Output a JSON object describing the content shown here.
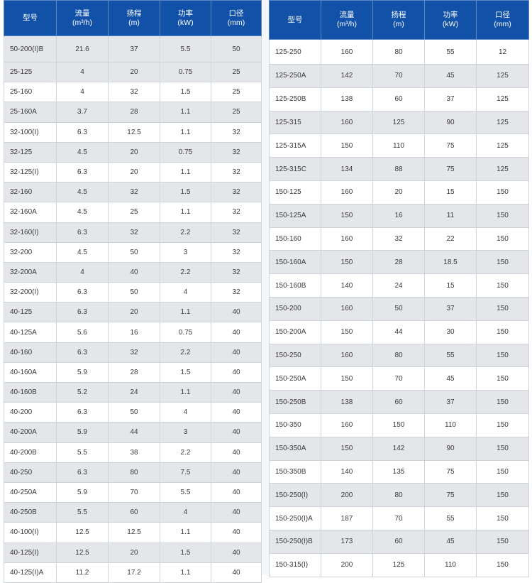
{
  "headers": {
    "model": "型号",
    "flow": "流量",
    "flow_unit": "(m³/h)",
    "head": "扬程",
    "head_unit": "(m)",
    "power": "功率",
    "power_unit": "(kW)",
    "diameter": "口径",
    "diameter_unit": "(mm)"
  },
  "left_top_row": [
    "50-200(I)B",
    "21.6",
    "37",
    "5.5",
    "50"
  ],
  "left_rows": [
    [
      "25-125",
      "4",
      "20",
      "0.75",
      "25"
    ],
    [
      "25-160",
      "4",
      "32",
      "1.5",
      "25"
    ],
    [
      "25-160A",
      "3.7",
      "28",
      "1.1",
      "25"
    ],
    [
      "32-100(I)",
      "6.3",
      "12.5",
      "1.1",
      "32"
    ],
    [
      "32-125",
      "4.5",
      "20",
      "0.75",
      "32"
    ],
    [
      "32-125(I)",
      "6.3",
      "20",
      "1.1",
      "32"
    ],
    [
      "32-160",
      "4.5",
      "32",
      "1.5",
      "32"
    ],
    [
      "32-160A",
      "4.5",
      "25",
      "1.1",
      "32"
    ],
    [
      "32-160(I)",
      "6.3",
      "32",
      "2.2",
      "32"
    ],
    [
      "32-200",
      "4.5",
      "50",
      "3",
      "32"
    ],
    [
      "32-200A",
      "4",
      "40",
      "2.2",
      "32"
    ],
    [
      "32-200(I)",
      "6.3",
      "50",
      "4",
      "32"
    ],
    [
      "40-125",
      "6.3",
      "20",
      "1.1",
      "40"
    ],
    [
      "40-125A",
      "5.6",
      "16",
      "0.75",
      "40"
    ],
    [
      "40-160",
      "6.3",
      "32",
      "2.2",
      "40"
    ],
    [
      "40-160A",
      "5.9",
      "28",
      "1.5",
      "40"
    ],
    [
      "40-160B",
      "5.2",
      "24",
      "1.1",
      "40"
    ],
    [
      "40-200",
      "6.3",
      "50",
      "4",
      "40"
    ],
    [
      "40-200A",
      "5.9",
      "44",
      "3",
      "40"
    ],
    [
      "40-200B",
      "5.5",
      "38",
      "2.2",
      "40"
    ],
    [
      "40-250",
      "6.3",
      "80",
      "7.5",
      "40"
    ],
    [
      "40-250A",
      "5.9",
      "70",
      "5.5",
      "40"
    ],
    [
      "40-250B",
      "5.5",
      "60",
      "4",
      "40"
    ],
    [
      "40-100(I)",
      "12.5",
      "12.5",
      "1.1",
      "40"
    ],
    [
      "40-125(I)",
      "12.5",
      "20",
      "1.5",
      "40"
    ],
    [
      "40-125(I)A",
      "11.2",
      "17.2",
      "1.1",
      "40"
    ]
  ],
  "right_top_row": [
    "125-250",
    "160",
    "80",
    "55",
    "12"
  ],
  "right_rows": [
    [
      "125-250A",
      "142",
      "70",
      "45",
      "125"
    ],
    [
      "125-250B",
      "138",
      "60",
      "37",
      "125"
    ],
    [
      "125-315",
      "160",
      "125",
      "90",
      "125"
    ],
    [
      "125-315A",
      "150",
      "110",
      "75",
      "125"
    ],
    [
      "125-315C",
      "134",
      "88",
      "75",
      "125"
    ],
    [
      "150-125",
      "160",
      "20",
      "15",
      "150"
    ],
    [
      "150-125A",
      "150",
      "16",
      "11",
      "150"
    ],
    [
      "150-160",
      "160",
      "32",
      "22",
      "150"
    ],
    [
      "150-160A",
      "150",
      "28",
      "18.5",
      "150"
    ],
    [
      "150-160B",
      "140",
      "24",
      "15",
      "150"
    ],
    [
      "150-200",
      "160",
      "50",
      "37",
      "150"
    ],
    [
      "150-200A",
      "150",
      "44",
      "30",
      "150"
    ],
    [
      "150-250",
      "160",
      "80",
      "55",
      "150"
    ],
    [
      "150-250A",
      "150",
      "70",
      "45",
      "150"
    ],
    [
      "150-250B",
      "138",
      "60",
      "37",
      "150"
    ],
    [
      "150-350",
      "160",
      "150",
      "110",
      "150"
    ],
    [
      "150-350A",
      "150",
      "142",
      "90",
      "150"
    ],
    [
      "150-350B",
      "140",
      "135",
      "75",
      "150"
    ],
    [
      "150-250(I)",
      "200",
      "80",
      "75",
      "150"
    ],
    [
      "150-250(I)A",
      "187",
      "70",
      "55",
      "150"
    ],
    [
      "150-250(I)B",
      "173",
      "60",
      "45",
      "150"
    ],
    [
      "150-315(I)",
      "200",
      "125",
      "110",
      "150"
    ]
  ]
}
